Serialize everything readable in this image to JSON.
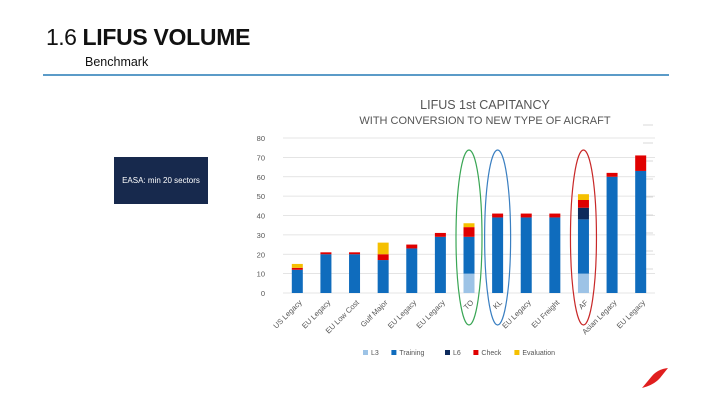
{
  "slide": {
    "number": "1.6",
    "title": "LIFUS VOLUME",
    "subtitle": "Benchmark",
    "info_box": "EASA: min 20 sectors",
    "accent_color": "#5b9bc8",
    "box_color": "#17294d",
    "logo_color": "#e01e1e"
  },
  "chart_data": {
    "type": "bar",
    "stacked": true,
    "title": "LIFUS 1st CAPITANCY",
    "subtitle": "WITH CONVERSION TO NEW TYPE OF AICRAFT",
    "categories": [
      "US Legacy",
      "EU Legacy",
      "EU Low Cost",
      "Gulf Major",
      "EU Legacy",
      "EU Legacy",
      "TO",
      "KL",
      "EU Legacy",
      "EU Freight",
      "AF",
      "Asian Legacy",
      "EU Legacy"
    ],
    "ylim": [
      0,
      80
    ],
    "yticks": [
      0,
      10,
      20,
      30,
      40,
      50,
      60,
      70,
      80
    ],
    "grid": true,
    "legend_position": "bottom",
    "series": [
      {
        "name": "L3",
        "color": "#9dc3e6",
        "values": [
          0,
          0,
          0,
          0,
          0,
          0,
          10,
          0,
          0,
          0,
          10,
          0,
          0
        ]
      },
      {
        "name": "Training",
        "color": "#0f6cbd",
        "values": [
          12,
          20,
          20,
          17,
          23,
          29,
          19,
          39,
          39,
          39,
          28,
          60,
          63
        ]
      },
      {
        "name": "L6",
        "color": "#0d2a5c",
        "values": [
          0,
          0,
          0,
          0,
          0,
          0,
          0,
          0,
          0,
          0,
          6,
          0,
          0
        ]
      },
      {
        "name": "Check",
        "color": "#e00000",
        "values": [
          1,
          1,
          1,
          3,
          2,
          2,
          5,
          2,
          2,
          2,
          4,
          2,
          8
        ]
      },
      {
        "name": "Evaluation",
        "color": "#f5c000",
        "values": [
          2,
          0,
          0,
          6,
          0,
          0,
          2,
          0,
          0,
          0,
          3,
          0,
          0
        ]
      }
    ],
    "highlight_ellipses": [
      {
        "categories": [
          "TO"
        ],
        "color": "#3aa655"
      },
      {
        "categories": [
          "KL"
        ],
        "color": "#3a7fc1"
      },
      {
        "categories": [
          "AF"
        ],
        "color": "#c82828"
      }
    ]
  }
}
